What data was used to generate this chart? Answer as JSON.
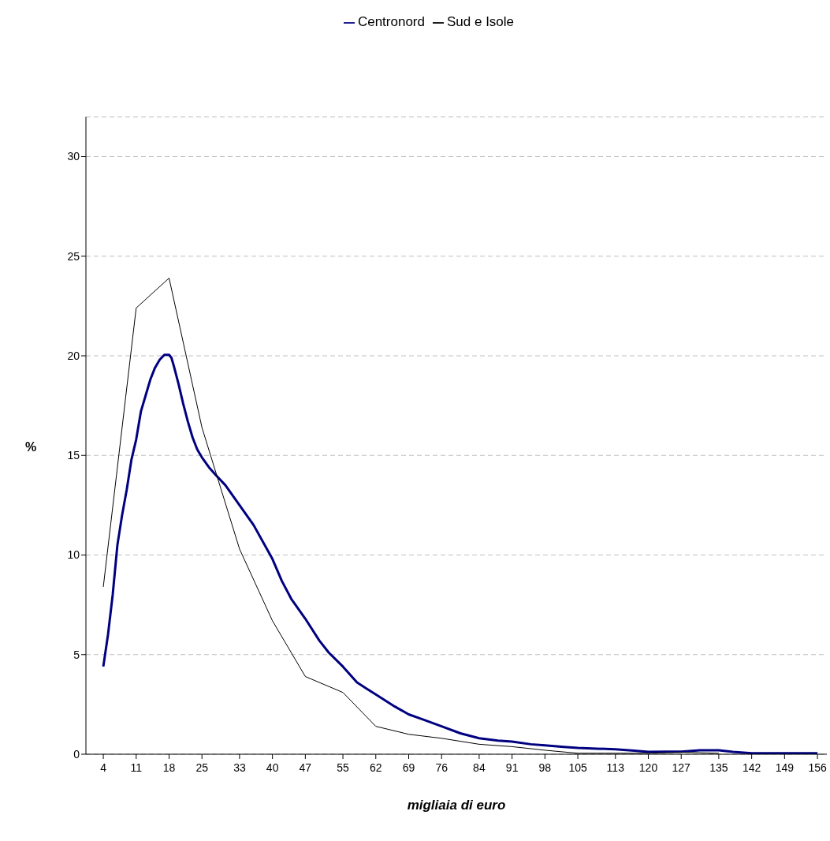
{
  "chart_data": {
    "type": "line",
    "xlabel": "migliaia di euro",
    "ylabel": "%",
    "xlim": [
      0.3,
      158
    ],
    "xticks": [
      4,
      11,
      18,
      25,
      33,
      40,
      47,
      55,
      62,
      69,
      76,
      84,
      91,
      98,
      105,
      113,
      120,
      127,
      135,
      142,
      149,
      156
    ],
    "ylim": [
      0,
      32
    ],
    "yticks": [
      0,
      5,
      10,
      15,
      20,
      25,
      30
    ],
    "grid": "y",
    "legend": "top",
    "marker": "none",
    "series": [
      {
        "name": "Centronord",
        "color": "#000080",
        "x": [
          4,
          5,
          6,
          7,
          8,
          9,
          10,
          11,
          12,
          13,
          14,
          15,
          16,
          17,
          18,
          18.5,
          19,
          20,
          21,
          22,
          23,
          24,
          25,
          26.5,
          28,
          30,
          33,
          36,
          40,
          42,
          44,
          47,
          50,
          52,
          55,
          58,
          60,
          62,
          66,
          69,
          72,
          76,
          80,
          84,
          88,
          91,
          95,
          98,
          102,
          105,
          109,
          113,
          117,
          120,
          124,
          127,
          131,
          135,
          138,
          142,
          149,
          156
        ],
        "values": [
          4.4,
          6,
          8,
          10.5,
          12,
          13.3,
          14.8,
          15.8,
          17.2,
          18,
          18.8,
          19.4,
          19.8,
          20.05,
          20.05,
          19.9,
          19.5,
          18.6,
          17.6,
          16.7,
          15.9,
          15.3,
          14.9,
          14.4,
          14.0,
          13.5,
          12.5,
          11.5,
          9.8,
          8.7,
          7.8,
          6.8,
          5.7,
          5.1,
          4.4,
          3.6,
          3.3,
          3.0,
          2.4,
          2.0,
          1.75,
          1.4,
          1.05,
          0.8,
          0.68,
          0.63,
          0.5,
          0.45,
          0.37,
          0.32,
          0.28,
          0.25,
          0.18,
          0.12,
          0.13,
          0.13,
          0.2,
          0.2,
          0.12,
          0.05,
          0.05,
          0.05
        ]
      },
      {
        "name": "Sud e Isole",
        "color": "#000000",
        "x": [
          4,
          11,
          18,
          25,
          33,
          40,
          47,
          55,
          62,
          69,
          76,
          84,
          91,
          98,
          105,
          113,
          120,
          127,
          135
        ],
        "values": [
          8.4,
          22.4,
          23.9,
          16.4,
          10.3,
          6.7,
          3.9,
          3.1,
          1.4,
          1.0,
          0.8,
          0.5,
          0.38,
          0.2,
          0.05,
          0.05,
          0.05,
          0.1,
          0.05
        ]
      }
    ]
  }
}
